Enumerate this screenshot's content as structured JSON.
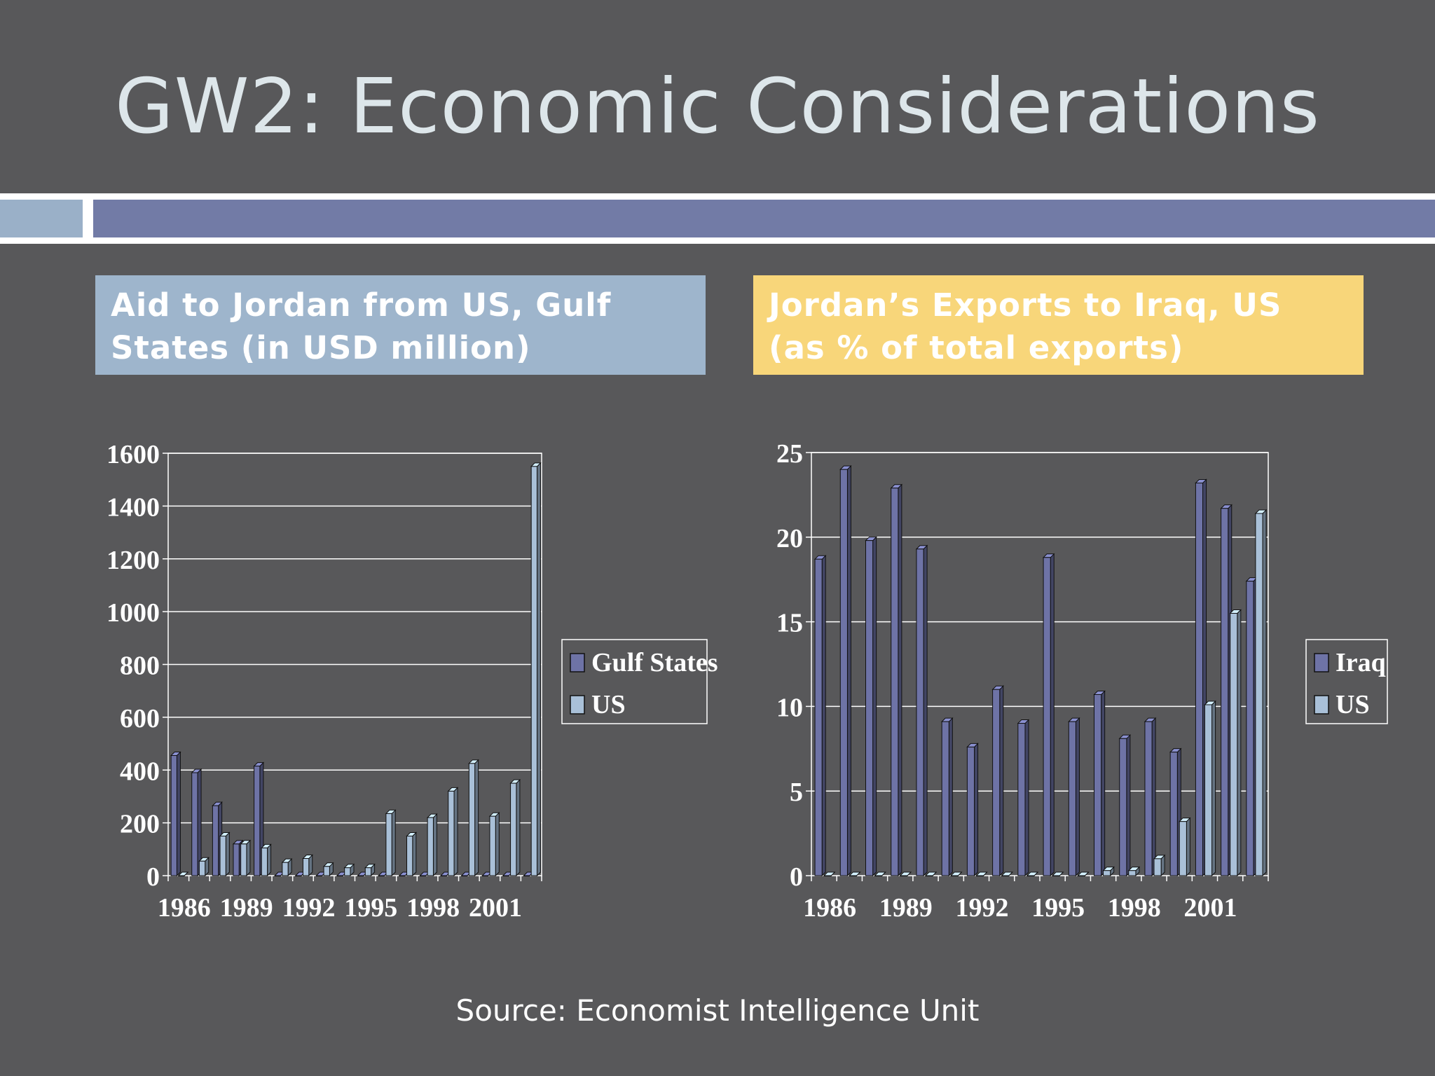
{
  "slide": {
    "title": "GW2: Economic Considerations",
    "source": "Source: Economist Intelligence Unit",
    "colors": {
      "background": "#58585a",
      "accent_dark": "#727ba6",
      "accent_light": "#9ab0c8",
      "header_blue": "#9eb5cc",
      "header_yellow": "#f8d67a"
    }
  },
  "chart_data": [
    {
      "type": "bar",
      "heading": "Aid to Jordan from US, Gulf States (in USD million)",
      "categories": [
        "1986",
        "1987",
        "1988",
        "1989",
        "1990",
        "1991",
        "1992",
        "1993",
        "1994",
        "1995",
        "1996",
        "1997",
        "1998",
        "1999",
        "2000",
        "2001",
        "2002",
        "2003"
      ],
      "tick_labels": [
        "1986",
        "1989",
        "1992",
        "1995",
        "1998",
        "2001"
      ],
      "y_ticks": [
        "0",
        "200",
        "400",
        "600",
        "800",
        "1000",
        "1200",
        "1400",
        "1600"
      ],
      "ylim": [
        0,
        1600
      ],
      "grid": true,
      "legend_position": "right",
      "series": [
        {
          "name": "Gulf States",
          "color": "#6e73a6",
          "values": [
            455,
            390,
            265,
            120,
            415,
            0,
            0,
            0,
            0,
            0,
            0,
            0,
            0,
            0,
            0,
            0,
            0,
            0
          ]
        },
        {
          "name": "US",
          "color": "#a9c0d8",
          "values": [
            0,
            55,
            150,
            120,
            105,
            50,
            65,
            35,
            30,
            30,
            235,
            150,
            220,
            320,
            425,
            225,
            350,
            1550
          ]
        }
      ]
    },
    {
      "type": "bar",
      "heading": "Jordan’s Exports to Iraq, US (as % of total exports)",
      "categories": [
        "1986",
        "1987",
        "1988",
        "1989",
        "1990",
        "1991",
        "1992",
        "1993",
        "1994",
        "1995",
        "1996",
        "1997",
        "1998",
        "1999",
        "2000",
        "2001",
        "2002",
        "2003"
      ],
      "tick_labels": [
        "1986",
        "1989",
        "1992",
        "1995",
        "1998",
        "2001"
      ],
      "y_ticks": [
        "0",
        "5",
        "10",
        "15",
        "20",
        "25"
      ],
      "ylim": [
        0,
        25
      ],
      "grid": true,
      "legend_position": "right",
      "series": [
        {
          "name": "Iraq",
          "color": "#6e73a6",
          "values": [
            18.7,
            24,
            19.8,
            22.9,
            19.3,
            9.1,
            7.6,
            11,
            9,
            18.8,
            9.1,
            10.7,
            8.1,
            9.1,
            7.3,
            23.2,
            21.7,
            17.4
          ]
        },
        {
          "name": "US",
          "color": "#a9c0d8",
          "values": [
            0,
            0,
            0,
            0,
            0,
            0,
            0,
            0,
            0,
            0,
            0,
            0.3,
            0.3,
            1,
            3.2,
            10.1,
            15.5,
            21.4
          ]
        }
      ]
    }
  ]
}
